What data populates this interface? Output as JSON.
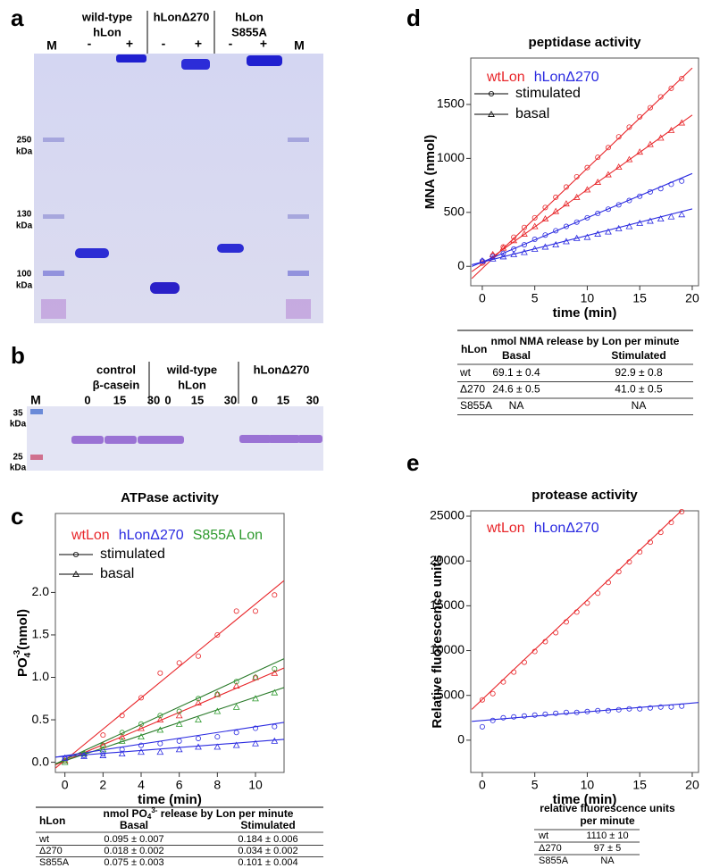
{
  "panels": [
    "a",
    "b",
    "c",
    "d",
    "e"
  ],
  "gel_a": {
    "marker": "M",
    "marker_right": "M",
    "groups": [
      {
        "lines": [
          "wild-type",
          "hLon"
        ],
        "lanes": [
          "-",
          "+"
        ]
      },
      {
        "lines": [
          "hLonΔ270"
        ],
        "lanes": [
          "-",
          "+"
        ]
      },
      {
        "lines": [
          "hLon",
          "S855A"
        ],
        "lanes": [
          "-",
          "+"
        ]
      }
    ],
    "sizes": [
      {
        "value": 250,
        "unit": "kDa"
      },
      {
        "value": 130,
        "unit": "kDa"
      },
      {
        "value": 100,
        "unit": "kDa"
      }
    ]
  },
  "gel_b": {
    "marker": "M",
    "groups": [
      {
        "lines": [
          "control",
          "β-casein"
        ],
        "lanes": [
          0,
          15,
          30
        ]
      },
      {
        "lines": [
          "wild-type",
          "hLon"
        ],
        "lanes": [
          0,
          15,
          30
        ]
      },
      {
        "lines": [
          "hLonΔ270"
        ],
        "lanes": [
          0,
          15,
          30
        ]
      }
    ],
    "sizes": [
      {
        "value": 35,
        "unit": "kDa"
      },
      {
        "value": 25,
        "unit": "kDa"
      }
    ]
  },
  "chart_data": [
    {
      "type": "scatter",
      "title": "ATPase activity",
      "xlabel": "time (min)",
      "ylabel": {
        "text": "PO",
        "sub": "4",
        "sup": "-3",
        "unit": "(nmol)"
      },
      "xlim": [
        -0.5,
        11.5
      ],
      "ylim": [
        -0.12,
        2.93
      ],
      "xticks": [
        0,
        2,
        4,
        6,
        8,
        10
      ],
      "yticks": [
        {
          "value": 0,
          "label": "0.0"
        },
        0.5,
        {
          "value": 1,
          "label": "1.0"
        },
        1.5,
        {
          "value": 2,
          "label": "2.0"
        }
      ],
      "legend": {
        "colors": [
          {
            "name": "wtLon",
            "color": "#e8262a"
          },
          {
            "name": "hLonΔ270",
            "color": "#2a2ae0"
          },
          {
            "name": "S855A Lon",
            "color": "#2e9a2e"
          }
        ],
        "markers": [
          {
            "name": "stimulated",
            "marker": "circle"
          },
          {
            "name": "basal",
            "marker": "triangle"
          }
        ]
      },
      "x": [
        0,
        1,
        2,
        3,
        4,
        5,
        6,
        7,
        8,
        9,
        10,
        11
      ],
      "series": [
        {
          "color": "#e8262a",
          "marker": "circle",
          "values": [
            0.02,
            0.1,
            0.32,
            0.55,
            0.76,
            1.05,
            1.17,
            1.25,
            1.5,
            1.78,
            1.78,
            1.97
          ]
        },
        {
          "color": "#e8262a",
          "marker": "triangle",
          "values": [
            0.02,
            0.1,
            0.2,
            0.3,
            0.4,
            0.5,
            0.55,
            0.7,
            0.8,
            0.9,
            1.0,
            1.05
          ]
        },
        {
          "color": "#2e9a2e",
          "marker": "circle",
          "values": [
            0.02,
            0.1,
            0.2,
            0.35,
            0.45,
            0.55,
            0.6,
            0.75,
            0.8,
            0.95,
            1.0,
            1.1
          ]
        },
        {
          "color": "#2e9a2e",
          "marker": "triangle",
          "values": [
            0.0,
            0.1,
            0.15,
            0.25,
            0.3,
            0.38,
            0.45,
            0.5,
            0.6,
            0.65,
            0.75,
            0.82
          ]
        },
        {
          "color": "#2a2ae0",
          "marker": "circle",
          "values": [
            0.05,
            0.08,
            0.1,
            0.15,
            0.2,
            0.22,
            0.25,
            0.28,
            0.3,
            0.35,
            0.4,
            0.42
          ]
        },
        {
          "color": "#2a2ae0",
          "marker": "triangle",
          "values": [
            0.05,
            0.07,
            0.08,
            0.1,
            0.12,
            0.12,
            0.15,
            0.18,
            0.18,
            0.2,
            0.22,
            0.25
          ]
        }
      ],
      "fits": [
        {
          "color": "#e8262a",
          "x": [
            -0.5,
            11.5
          ],
          "values": [
            -0.07,
            2.14
          ]
        },
        {
          "color": "#e8262a",
          "x": [
            -0.5,
            11.5
          ],
          "values": [
            -0.03,
            1.11
          ]
        },
        {
          "color": "#2a7a2a",
          "x": [
            -0.5,
            11.5
          ],
          "values": [
            -0.02,
            1.22
          ]
        },
        {
          "color": "#2a7a2a",
          "x": [
            -0.5,
            11.5
          ],
          "values": [
            -0.02,
            0.88
          ]
        },
        {
          "color": "#2a2ae0",
          "x": [
            -0.5,
            11.5
          ],
          "values": [
            0.06,
            0.47
          ]
        },
        {
          "color": "#2a2ae0",
          "x": [
            -0.5,
            11.5
          ],
          "values": [
            0.06,
            0.27
          ]
        }
      ]
    },
    {
      "type": "scatter",
      "title": "peptidase activity",
      "xlabel": "time (min)",
      "ylabel": "MNA (nmol)",
      "xlim": [
        -1.1,
        20.6
      ],
      "ylim": [
        -180,
        1930
      ],
      "xticks": [
        0,
        5,
        10,
        15,
        20
      ],
      "yticks": [
        0,
        500,
        1000,
        1500
      ],
      "legend": {
        "colors": [
          {
            "name": "wtLon",
            "color": "#e8262a"
          },
          {
            "name": "hLonΔ270",
            "color": "#2a2ae0"
          }
        ],
        "markers": [
          {
            "name": "stimulated",
            "marker": "circle"
          },
          {
            "name": "basal",
            "marker": "triangle"
          }
        ]
      },
      "x": [
        0,
        1,
        2,
        3,
        4,
        5,
        6,
        7,
        8,
        9,
        10,
        11,
        12,
        13,
        14,
        15,
        16,
        17,
        18,
        19
      ],
      "series": [
        {
          "color": "#e8262a",
          "marker": "circle",
          "values": [
            30,
            100,
            180,
            270,
            360,
            450,
            545,
            640,
            735,
            830,
            915,
            1010,
            1100,
            1200,
            1290,
            1385,
            1470,
            1570,
            1650,
            1740
          ]
        },
        {
          "color": "#e8262a",
          "marker": "triangle",
          "values": [
            50,
            110,
            170,
            240,
            300,
            370,
            440,
            510,
            580,
            640,
            710,
            780,
            850,
            920,
            990,
            1060,
            1130,
            1190,
            1260,
            1330
          ]
        },
        {
          "color": "#2a2ae0",
          "marker": "circle",
          "values": [
            50,
            90,
            120,
            160,
            200,
            250,
            290,
            330,
            370,
            410,
            450,
            490,
            530,
            570,
            610,
            650,
            690,
            720,
            760,
            790
          ]
        },
        {
          "color": "#2a2ae0",
          "marker": "triangle",
          "values": [
            50,
            70,
            90,
            110,
            130,
            160,
            180,
            200,
            230,
            260,
            270,
            300,
            320,
            350,
            370,
            400,
            420,
            440,
            460,
            480
          ]
        }
      ],
      "fits": [
        {
          "color": "#e8262a",
          "x": [
            -1,
            20
          ],
          "values": [
            -113,
            1838
          ]
        },
        {
          "color": "#e8262a",
          "x": [
            -1,
            20
          ],
          "values": [
            -49,
            1402
          ]
        },
        {
          "color": "#2a2ae0",
          "x": [
            -1,
            20
          ],
          "values": [
            -1,
            860
          ]
        },
        {
          "color": "#2a2ae0",
          "x": [
            -1,
            20
          ],
          "values": [
            15,
            532
          ]
        }
      ]
    },
    {
      "type": "scatter",
      "title": "protease activity",
      "xlabel": "time (min)",
      "ylabel": "Relative fluorescence units",
      "xlim": [
        -1.1,
        20.6
      ],
      "ylim": [
        -3600,
        25600
      ],
      "xticks": [
        0,
        5,
        10,
        15,
        20
      ],
      "yticks": [
        0,
        5000,
        10000,
        15000,
        20000,
        25000
      ],
      "legend": {
        "colors": [
          {
            "name": "wtLon",
            "color": "#e8262a"
          },
          {
            "name": "hLonΔ270",
            "color": "#2a2ae0"
          }
        ]
      },
      "x": [
        0,
        1,
        2,
        3,
        4,
        5,
        6,
        7,
        8,
        9,
        10,
        11,
        12,
        13,
        14,
        15,
        16,
        17,
        18,
        19
      ],
      "series": [
        {
          "color": "#e8262a",
          "marker": "circle",
          "values": [
            4500,
            5200,
            6500,
            7600,
            8700,
            9900,
            11000,
            12000,
            13200,
            14300,
            15300,
            16400,
            17600,
            18800,
            19900,
            21000,
            22100,
            23200,
            24300,
            25500
          ]
        },
        {
          "color": "#2a2ae0",
          "marker": "circle",
          "values": [
            1500,
            2200,
            2500,
            2600,
            2700,
            2800,
            2900,
            3000,
            3100,
            3100,
            3200,
            3300,
            3300,
            3400,
            3500,
            3500,
            3600,
            3700,
            3700,
            3800
          ]
        }
      ],
      "fits": [
        {
          "color": "#e8262a",
          "x": [
            -1,
            20.6
          ],
          "values": [
            3440,
            27420
          ]
        },
        {
          "color": "#2a2ae0",
          "x": [
            -1,
            20.6
          ],
          "values": [
            2100,
            4200
          ]
        }
      ]
    }
  ],
  "tables": [
    {
      "corner": "hLon",
      "header": {
        "text": "nmol PO",
        "sub": "4",
        "sup": "3-",
        "rest": " release by Lon per minute"
      },
      "columns": [
        "Basal",
        "Stimulated"
      ],
      "rows": [
        [
          "wt",
          "0.095 ± 0.007",
          "0.184 ± 0.006"
        ],
        [
          "Δ270",
          "0.018 ± 0.002",
          "0.034 ± 0.002"
        ],
        [
          "S855A",
          "0.075 ± 0.003",
          "0.101 ± 0.004"
        ]
      ]
    },
    {
      "corner": "hLon",
      "header": "nmol NMA release by Lon per minute",
      "columns": [
        "Basal",
        "Stimulated"
      ],
      "rows": [
        [
          "wt",
          "69.1 ± 0.4",
          "92.9 ± 0.8"
        ],
        [
          "Δ270",
          "24.6 ± 0.5",
          "41.0 ± 0.5"
        ],
        [
          "S855A",
          "NA",
          "NA"
        ]
      ]
    },
    {
      "header_lines": [
        "relative fluorescence units",
        "per minute"
      ],
      "rows": [
        [
          "wt",
          "1110 ± 10"
        ],
        [
          "Δ270",
          "97 ± 5"
        ],
        [
          "S855A",
          "NA"
        ]
      ]
    }
  ]
}
